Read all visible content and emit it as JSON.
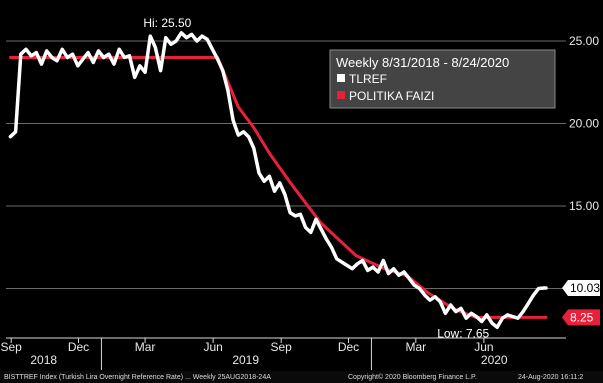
{
  "chart_data": {
    "type": "line",
    "title": "Weekly 8/31/2018 - 8/24/2020",
    "ylim": [
      7,
      27
    ],
    "y_ticks": [
      "25.00",
      "20.00",
      "15.00",
      "10.00"
    ],
    "y_tick_values": [
      25,
      20,
      15,
      10
    ],
    "x_tick_months": [
      "Sep",
      "Dec",
      "Mar",
      "Jun",
      "Sep",
      "Dec",
      "Mar",
      "Jun"
    ],
    "x_tick_dates": [
      "2018-09-01",
      "2018-12-01",
      "2019-03-01",
      "2019-06-01",
      "2019-09-01",
      "2019-12-01",
      "2020-03-01",
      "2020-06-01"
    ],
    "x_years": [
      "2018",
      "2019",
      "2020"
    ],
    "x_year_dates": [
      "2018-10-15",
      "2019-07-15",
      "2020-06-15"
    ],
    "x_range": [
      "2018-08-25",
      "2020-09-20"
    ],
    "series": [
      {
        "name": "TLREF",
        "color": "#ffffff",
        "points": [
          [
            "2018-08-31",
            19.2
          ],
          [
            "2018-09-07",
            19.5
          ],
          [
            "2018-09-14",
            24.2
          ],
          [
            "2018-09-21",
            24.5
          ],
          [
            "2018-09-28",
            24.1
          ],
          [
            "2018-10-05",
            24.3
          ],
          [
            "2018-10-12",
            23.6
          ],
          [
            "2018-10-19",
            24.4
          ],
          [
            "2018-10-26",
            24.0
          ],
          [
            "2018-11-02",
            23.8
          ],
          [
            "2018-11-09",
            24.5
          ],
          [
            "2018-11-16",
            24.0
          ],
          [
            "2018-11-23",
            24.2
          ],
          [
            "2018-11-30",
            23.5
          ],
          [
            "2018-12-07",
            23.9
          ],
          [
            "2018-12-14",
            24.3
          ],
          [
            "2018-12-21",
            23.7
          ],
          [
            "2018-12-28",
            24.4
          ],
          [
            "2019-01-04",
            24.0
          ],
          [
            "2019-01-11",
            24.2
          ],
          [
            "2019-01-18",
            23.6
          ],
          [
            "2019-01-25",
            24.5
          ],
          [
            "2019-02-01",
            24.0
          ],
          [
            "2019-02-08",
            24.1
          ],
          [
            "2019-02-15",
            22.8
          ],
          [
            "2019-02-22",
            23.5
          ],
          [
            "2019-03-01",
            23.1
          ],
          [
            "2019-03-08",
            25.3
          ],
          [
            "2019-03-15",
            24.6
          ],
          [
            "2019-03-22",
            23.2
          ],
          [
            "2019-03-29",
            25.2
          ],
          [
            "2019-04-05",
            24.8
          ],
          [
            "2019-04-12",
            25.0
          ],
          [
            "2019-04-19",
            25.5
          ],
          [
            "2019-04-26",
            25.2
          ],
          [
            "2019-05-03",
            25.4
          ],
          [
            "2019-05-10",
            25.0
          ],
          [
            "2019-05-17",
            25.3
          ],
          [
            "2019-05-24",
            25.1
          ],
          [
            "2019-05-31",
            24.5
          ],
          [
            "2019-06-07",
            23.9
          ],
          [
            "2019-06-14",
            23.2
          ],
          [
            "2019-06-21",
            22.0
          ],
          [
            "2019-06-28",
            20.2
          ],
          [
            "2019-07-05",
            19.3
          ],
          [
            "2019-07-12",
            19.5
          ],
          [
            "2019-07-19",
            19.2
          ],
          [
            "2019-07-26",
            18.5
          ],
          [
            "2019-08-02",
            17.0
          ],
          [
            "2019-08-09",
            16.5
          ],
          [
            "2019-08-16",
            16.8
          ],
          [
            "2019-08-23",
            15.9
          ],
          [
            "2019-08-30",
            16.4
          ],
          [
            "2019-09-06",
            15.7
          ],
          [
            "2019-09-13",
            14.6
          ],
          [
            "2019-09-20",
            14.4
          ],
          [
            "2019-09-27",
            14.5
          ],
          [
            "2019-10-04",
            13.7
          ],
          [
            "2019-10-11",
            13.4
          ],
          [
            "2019-10-18",
            14.2
          ],
          [
            "2019-10-25",
            13.6
          ],
          [
            "2019-11-01",
            13.0
          ],
          [
            "2019-11-08",
            12.5
          ],
          [
            "2019-11-15",
            11.8
          ],
          [
            "2019-11-22",
            11.6
          ],
          [
            "2019-11-29",
            11.4
          ],
          [
            "2019-12-06",
            11.2
          ],
          [
            "2019-12-13",
            11.5
          ],
          [
            "2019-12-20",
            11.7
          ],
          [
            "2019-12-27",
            11.1
          ],
          [
            "2020-01-03",
            11.3
          ],
          [
            "2020-01-10",
            11.0
          ],
          [
            "2020-01-17",
            11.7
          ],
          [
            "2020-01-24",
            10.9
          ],
          [
            "2020-01-31",
            11.2
          ],
          [
            "2020-02-07",
            10.8
          ],
          [
            "2020-02-14",
            11.0
          ],
          [
            "2020-02-21",
            10.6
          ],
          [
            "2020-02-28",
            10.2
          ],
          [
            "2020-03-06",
            10.0
          ],
          [
            "2020-03-13",
            9.6
          ],
          [
            "2020-03-20",
            9.3
          ],
          [
            "2020-03-27",
            9.5
          ],
          [
            "2020-04-03",
            9.2
          ],
          [
            "2020-04-10",
            8.5
          ],
          [
            "2020-04-17",
            9.0
          ],
          [
            "2020-04-24",
            8.6
          ],
          [
            "2020-05-01",
            8.8
          ],
          [
            "2020-05-08",
            8.2
          ],
          [
            "2020-05-15",
            8.5
          ],
          [
            "2020-05-22",
            8.3
          ],
          [
            "2020-05-29",
            8.0
          ],
          [
            "2020-06-05",
            8.4
          ],
          [
            "2020-06-12",
            7.9
          ],
          [
            "2020-06-19",
            7.65
          ],
          [
            "2020-06-26",
            8.2
          ],
          [
            "2020-07-03",
            8.4
          ],
          [
            "2020-07-10",
            8.3
          ],
          [
            "2020-07-17",
            8.2
          ],
          [
            "2020-07-24",
            8.6
          ],
          [
            "2020-07-31",
            9.1
          ],
          [
            "2020-08-07",
            9.6
          ],
          [
            "2020-08-14",
            10.0
          ],
          [
            "2020-08-21",
            10.03
          ],
          [
            "2020-08-24",
            10.03
          ]
        ]
      },
      {
        "name": "POLITIKA FAIZI",
        "color": "#e8203a",
        "points": [
          [
            "2018-08-31",
            24.0
          ],
          [
            "2019-06-07",
            24.0
          ],
          [
            "2019-07-05",
            21.0
          ],
          [
            "2019-07-26",
            19.75
          ],
          [
            "2019-08-16",
            18.2
          ],
          [
            "2019-09-12",
            16.5
          ],
          [
            "2019-10-24",
            14.0
          ],
          [
            "2019-12-11",
            12.0
          ],
          [
            "2020-01-16",
            11.25
          ],
          [
            "2020-02-19",
            10.75
          ],
          [
            "2020-03-17",
            9.75
          ],
          [
            "2020-04-22",
            8.75
          ],
          [
            "2020-05-21",
            8.25
          ],
          [
            "2020-08-24",
            8.25
          ]
        ]
      }
    ],
    "last_values": [
      "10.03",
      "8.25"
    ],
    "annotations": {
      "high": "Hi: 25.50",
      "low": "Low: 7.65"
    },
    "legend": {
      "title": "Weekly 8/31/2018 - 8/24/2020",
      "items": [
        "TLREF",
        "POLITIKA FAIZI"
      ]
    },
    "footer": {
      "left": "BISTTREF Index (Turkish Lira Overnight Reference Rate) ...  Weekly 25AUG2018-24A",
      "middle": "Copyright© 2020 Bloomberg Finance L.P.",
      "right": "24-Aug-2020 16:11:2"
    }
  }
}
